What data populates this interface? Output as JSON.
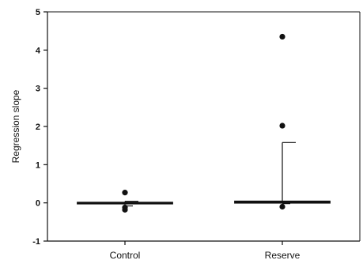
{
  "chart_data": {
    "type": "box",
    "ylabel": "Regression slope",
    "ylim": [
      -1,
      5
    ],
    "yticks": [
      -1,
      0,
      1,
      2,
      3,
      4,
      5
    ],
    "categories": [
      "Control",
      "Reserve"
    ],
    "boxes": [
      {
        "category": "Control",
        "median": 0.0,
        "q1": -0.01,
        "q3": 0.01,
        "whisker_low": -0.08,
        "whisker_high": 0.04,
        "outliers": [
          0.27,
          -0.12,
          -0.18
        ]
      },
      {
        "category": "Reserve",
        "median": 0.02,
        "q1": 0.0,
        "q3": 0.04,
        "whisker_low": -0.02,
        "whisker_high": 1.58,
        "outliers": [
          4.35,
          2.02,
          -0.1
        ]
      }
    ],
    "grid": false,
    "legend": "none"
  },
  "colors": {
    "ink": "#111111",
    "background": "#ffffff"
  }
}
